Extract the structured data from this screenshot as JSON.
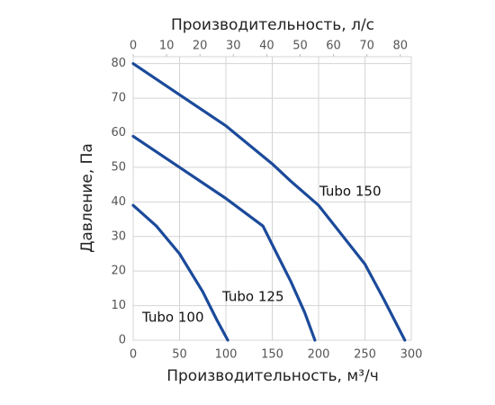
{
  "chart_data": {
    "type": "line",
    "x2_title": "Производительность, л/с",
    "ytitle": "Давление, Па",
    "xtitle": "Производительность, м³/ч",
    "xlim": [
      0,
      300
    ],
    "xticks": [
      0,
      50,
      100,
      150,
      200,
      250,
      300
    ],
    "x2lim": [
      0,
      83.3
    ],
    "x2ticks": [
      0,
      10,
      20,
      30,
      40,
      50,
      60,
      70,
      80
    ],
    "ylim": [
      0,
      82
    ],
    "yticks": [
      0,
      10,
      20,
      30,
      40,
      50,
      60,
      70,
      80
    ],
    "grid": true,
    "series": [
      {
        "name": "Tubo 150",
        "color": "#1b4a9a",
        "x": [
          0,
          50,
          100,
          150,
          170,
          200,
          250,
          270,
          293
        ],
        "values": [
          80,
          71,
          62,
          51,
          46,
          39,
          22,
          12,
          0
        ]
      },
      {
        "name": "Tubo 125",
        "color": "#1b4a9a",
        "x": [
          0,
          50,
          100,
          140,
          155,
          170,
          185,
          196
        ],
        "values": [
          59,
          50,
          41,
          33,
          25,
          17,
          8,
          0
        ]
      },
      {
        "name": "Tubo 100",
        "color": "#1b4a9a",
        "x": [
          0,
          25,
          50,
          75,
          90,
          102
        ],
        "values": [
          39,
          33,
          25,
          14,
          6,
          0
        ]
      }
    ]
  }
}
